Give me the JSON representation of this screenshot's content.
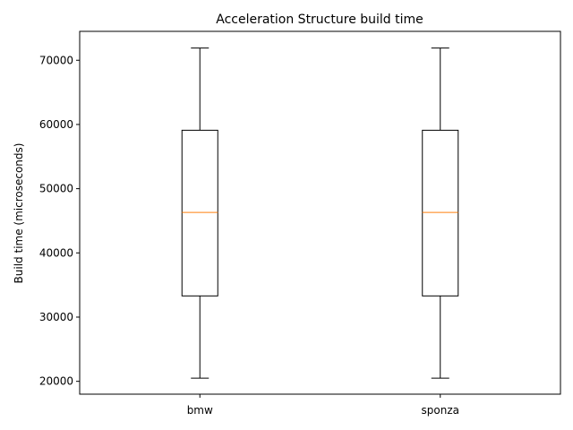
{
  "chart_data": {
    "type": "box",
    "title": "Acceleration Structure build time",
    "xlabel": "",
    "ylabel": "Build time (microseconds)",
    "ylim": [
      18000,
      74500
    ],
    "yticks": [
      20000,
      30000,
      40000,
      50000,
      60000,
      70000
    ],
    "categories": [
      "bmw",
      "sponza"
    ],
    "boxes": [
      {
        "category": "bmw",
        "whisker_low": 20500,
        "q1": 33300,
        "median": 46300,
        "q3": 59100,
        "whisker_high": 71900
      },
      {
        "category": "sponza",
        "whisker_low": 20500,
        "q1": 33300,
        "median": 46300,
        "q3": 59100,
        "whisker_high": 71900
      }
    ],
    "grid": false,
    "colors": {
      "box": "#000000",
      "median": "#ff7f0e"
    }
  }
}
